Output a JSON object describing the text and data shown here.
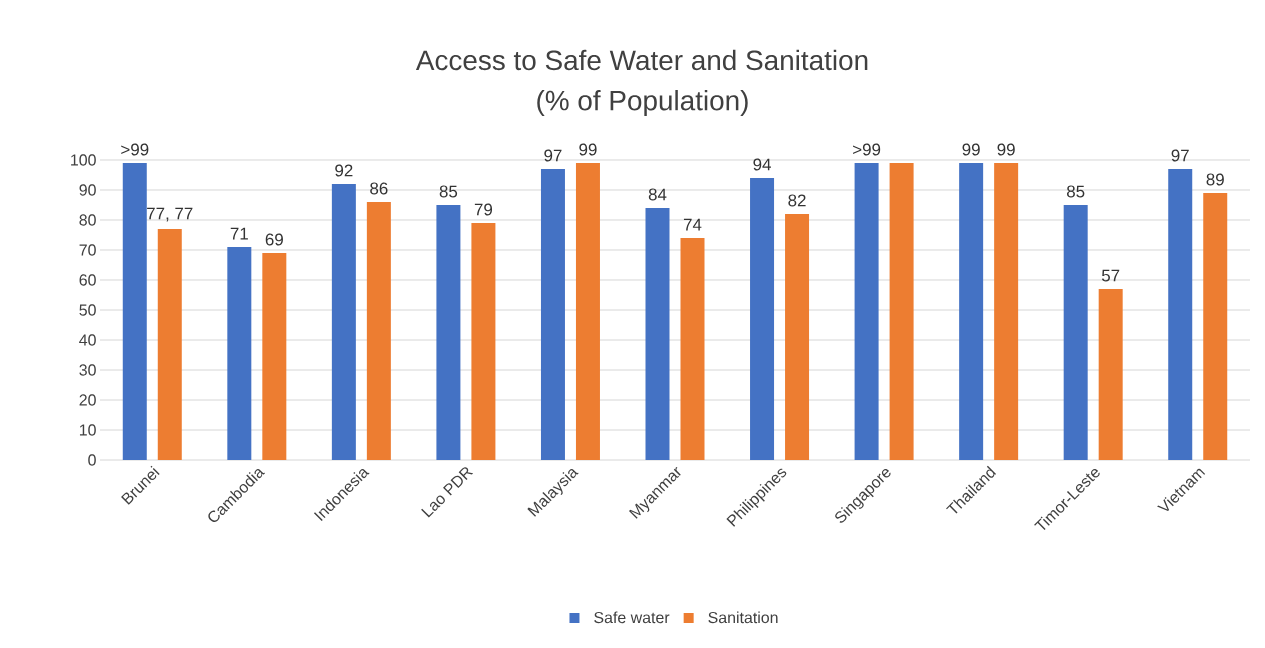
{
  "chart_data": {
    "type": "bar",
    "title": "Access to Safe Water and Sanitation",
    "subtitle": "(% of Population)",
    "categories": [
      "Brunei",
      "Cambodia",
      "Indonesia",
      "Lao PDR",
      "Malaysia",
      "Myanmar",
      "Philippines",
      "Singapore",
      "Thailand",
      "Timor-Leste",
      "Vietnam"
    ],
    "series": [
      {
        "name": "Safe water",
        "color": "#4472c4",
        "values": [
          99,
          71,
          92,
          85,
          97,
          84,
          94,
          99,
          99,
          85,
          97
        ],
        "value_labels": [
          ">99",
          "71",
          "92",
          "85",
          "97",
          "84",
          "94",
          ">99",
          "99",
          "85",
          "97"
        ]
      },
      {
        "name": "Sanitation",
        "color": "#ed7d31",
        "values": [
          77,
          69,
          86,
          79,
          99,
          74,
          82,
          99,
          99,
          57,
          89
        ],
        "value_labels": [
          "77, 77",
          "69",
          "86",
          "79",
          "99",
          "74",
          "82",
          null,
          "99",
          "57",
          "89"
        ]
      }
    ],
    "ylim": [
      0,
      100
    ],
    "yticks": [
      0,
      10,
      20,
      30,
      40,
      50,
      60,
      70,
      80,
      90,
      100
    ],
    "grid": "y",
    "legend": "bottom"
  }
}
